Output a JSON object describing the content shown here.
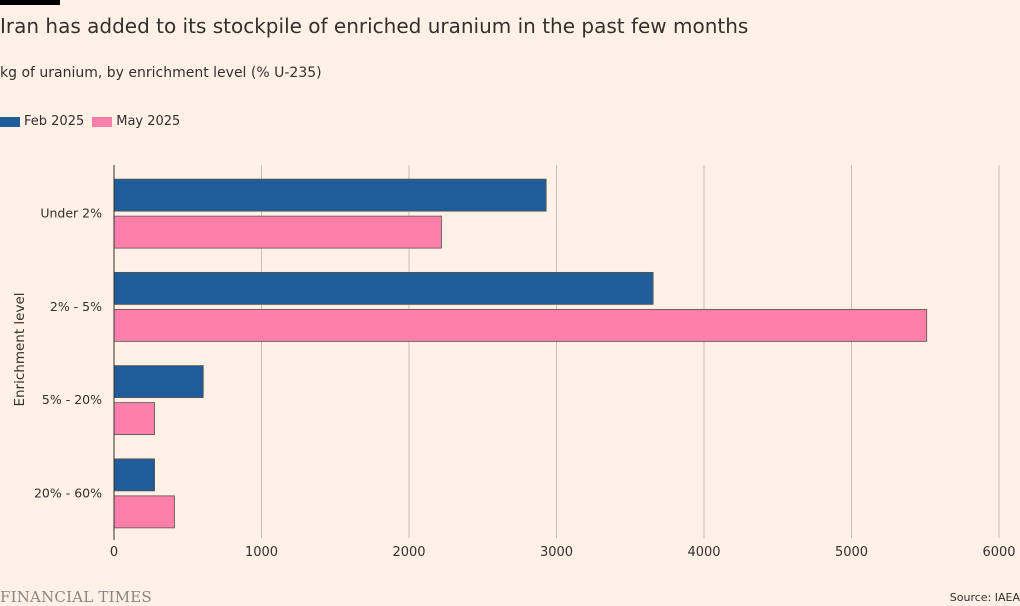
{
  "title": "Iran has added to its stockpile of enriched uranium in the past few months",
  "subtitle": "kg of uranium, by enrichment level (% U-235)",
  "source": "Source: IAEA",
  "brand": "FINANCIAL TIMES",
  "colors": {
    "feb": "#1f5c99",
    "may": "#ff7fab",
    "grid": "#c9bfb5",
    "background": "#fff1e5"
  },
  "chart_data": {
    "type": "bar",
    "orientation": "horizontal",
    "ylabel": "Enrichment level",
    "categories": [
      "Under 2%",
      "2% - 5%",
      "5% - 20%",
      "20% - 60%"
    ],
    "series": [
      {
        "name": "Feb 2025",
        "values": [
          2930,
          3655,
          605,
          275
        ]
      },
      {
        "name": "May 2025",
        "values": [
          2220,
          5510,
          275,
          410
        ]
      }
    ],
    "xlim": [
      0,
      6000
    ],
    "xticks": [
      "0",
      "1000",
      "2000",
      "3000",
      "4000",
      "5000",
      "6000"
    ],
    "grid": true,
    "legend_position": "top-left"
  }
}
